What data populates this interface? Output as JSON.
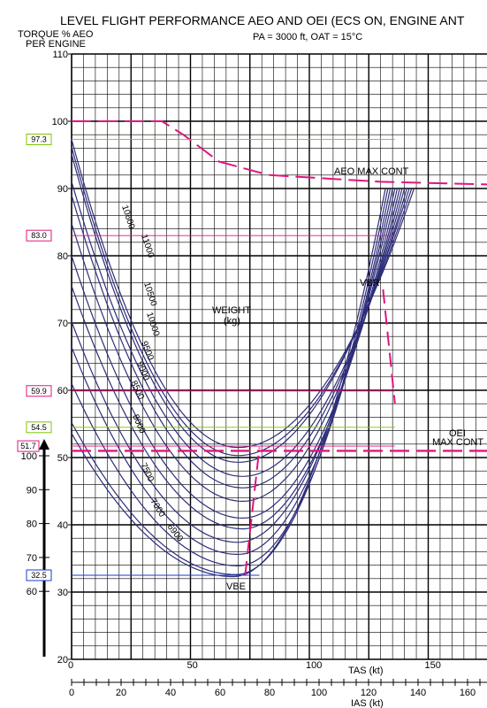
{
  "chart_data": {
    "type": "line",
    "title": "LEVEL FLIGHT PERFORMANCE AEO AND OEI  (ECS ON, ENGINE ANT",
    "subtitle": "PA = 3000 ft,   OAT = 15°C",
    "ylabel_line1": "TORQUE % AEO",
    "ylabel_line2": "PER ENGINE",
    "xlabel": "TAS (kt)",
    "ias_label": "IAS (kt)",
    "xlim": [
      0,
      175
    ],
    "ylim": [
      20,
      110
    ],
    "y_ticks": [
      "110",
      "100",
      "90",
      "80",
      "70",
      "60",
      "50",
      "40",
      "30",
      "20"
    ],
    "x_ticks": [
      "0",
      "50",
      "100",
      "150"
    ],
    "ias_ticks": [
      "0",
      "20",
      "40",
      "60",
      "80",
      "100",
      "120",
      "140",
      "160"
    ],
    "oei_scale_ticks": [
      "100",
      "90",
      "80",
      "70",
      "60"
    ],
    "weight_label_line1": "WEIGHT",
    "weight_label_line2": "(kg)",
    "weight_labels": [
      "10600",
      "11000",
      "10500",
      "10000",
      "9500",
      "9000",
      "8500",
      "8000",
      "7500",
      "7000",
      "6900"
    ],
    "annotations": {
      "aeo_max_cont": "AEO MAX CONT",
      "oei_line1": "OEI",
      "oei_line2": "MAX CONT",
      "vbr": "VBR",
      "vbe": "VBE"
    },
    "callouts": [
      "97.3",
      "83.0",
      "59.9",
      "54.5",
      "51.7",
      "32.5"
    ],
    "series": [
      {
        "values": [
          [
            0,
            97.3
          ],
          [
            70,
            51.5
          ],
          [
            144,
            90
          ]
        ]
      },
      {
        "values": [
          [
            0,
            96.2
          ],
          [
            70,
            50.3
          ],
          [
            143,
            90
          ]
        ]
      },
      {
        "values": [
          [
            0,
            95.1
          ],
          [
            70,
            49.3
          ],
          [
            142,
            90
          ]
        ]
      },
      {
        "values": [
          [
            0,
            91.0
          ],
          [
            72,
            47.2
          ],
          [
            141,
            90
          ]
        ]
      },
      {
        "values": [
          [
            0,
            89.0
          ],
          [
            72,
            45.5
          ],
          [
            140,
            90
          ]
        ]
      },
      {
        "values": [
          [
            0,
            84.8
          ],
          [
            72,
            43.5
          ],
          [
            139,
            90
          ]
        ]
      },
      {
        "values": [
          [
            0,
            80.0
          ],
          [
            72,
            41.0
          ],
          [
            138,
            90
          ]
        ]
      },
      {
        "values": [
          [
            0,
            75.5
          ],
          [
            72,
            39.4
          ],
          [
            137,
            90
          ]
        ]
      },
      {
        "values": [
          [
            0,
            70.2
          ],
          [
            70,
            37.4
          ],
          [
            136,
            90
          ]
        ]
      },
      {
        "values": [
          [
            0,
            66.4
          ],
          [
            70,
            35.6
          ],
          [
            135,
            90
          ]
        ]
      },
      {
        "values": [
          [
            0,
            61.0
          ],
          [
            70,
            33.9
          ],
          [
            134,
            90
          ]
        ]
      },
      {
        "values": [
          [
            0,
            55.2
          ],
          [
            69,
            32.6
          ],
          [
            133,
            90
          ]
        ]
      },
      {
        "values": [
          [
            0,
            53.6
          ],
          [
            68,
            32.3
          ],
          [
            132,
            90
          ]
        ]
      }
    ],
    "aeo_max_cont_line": [
      [
        0,
        100
      ],
      [
        38,
        100
      ],
      [
        47,
        98
      ],
      [
        62,
        94
      ],
      [
        83,
        92
      ],
      [
        130,
        91
      ],
      [
        175,
        90.6
      ]
    ],
    "oei_max_cont_level": 51.0,
    "vbr_line": [
      [
        131,
        75
      ],
      [
        136,
        58
      ]
    ],
    "vbe_line": [
      [
        73,
        32.5
      ],
      [
        79,
        51.5
      ]
    ],
    "grid": true
  }
}
